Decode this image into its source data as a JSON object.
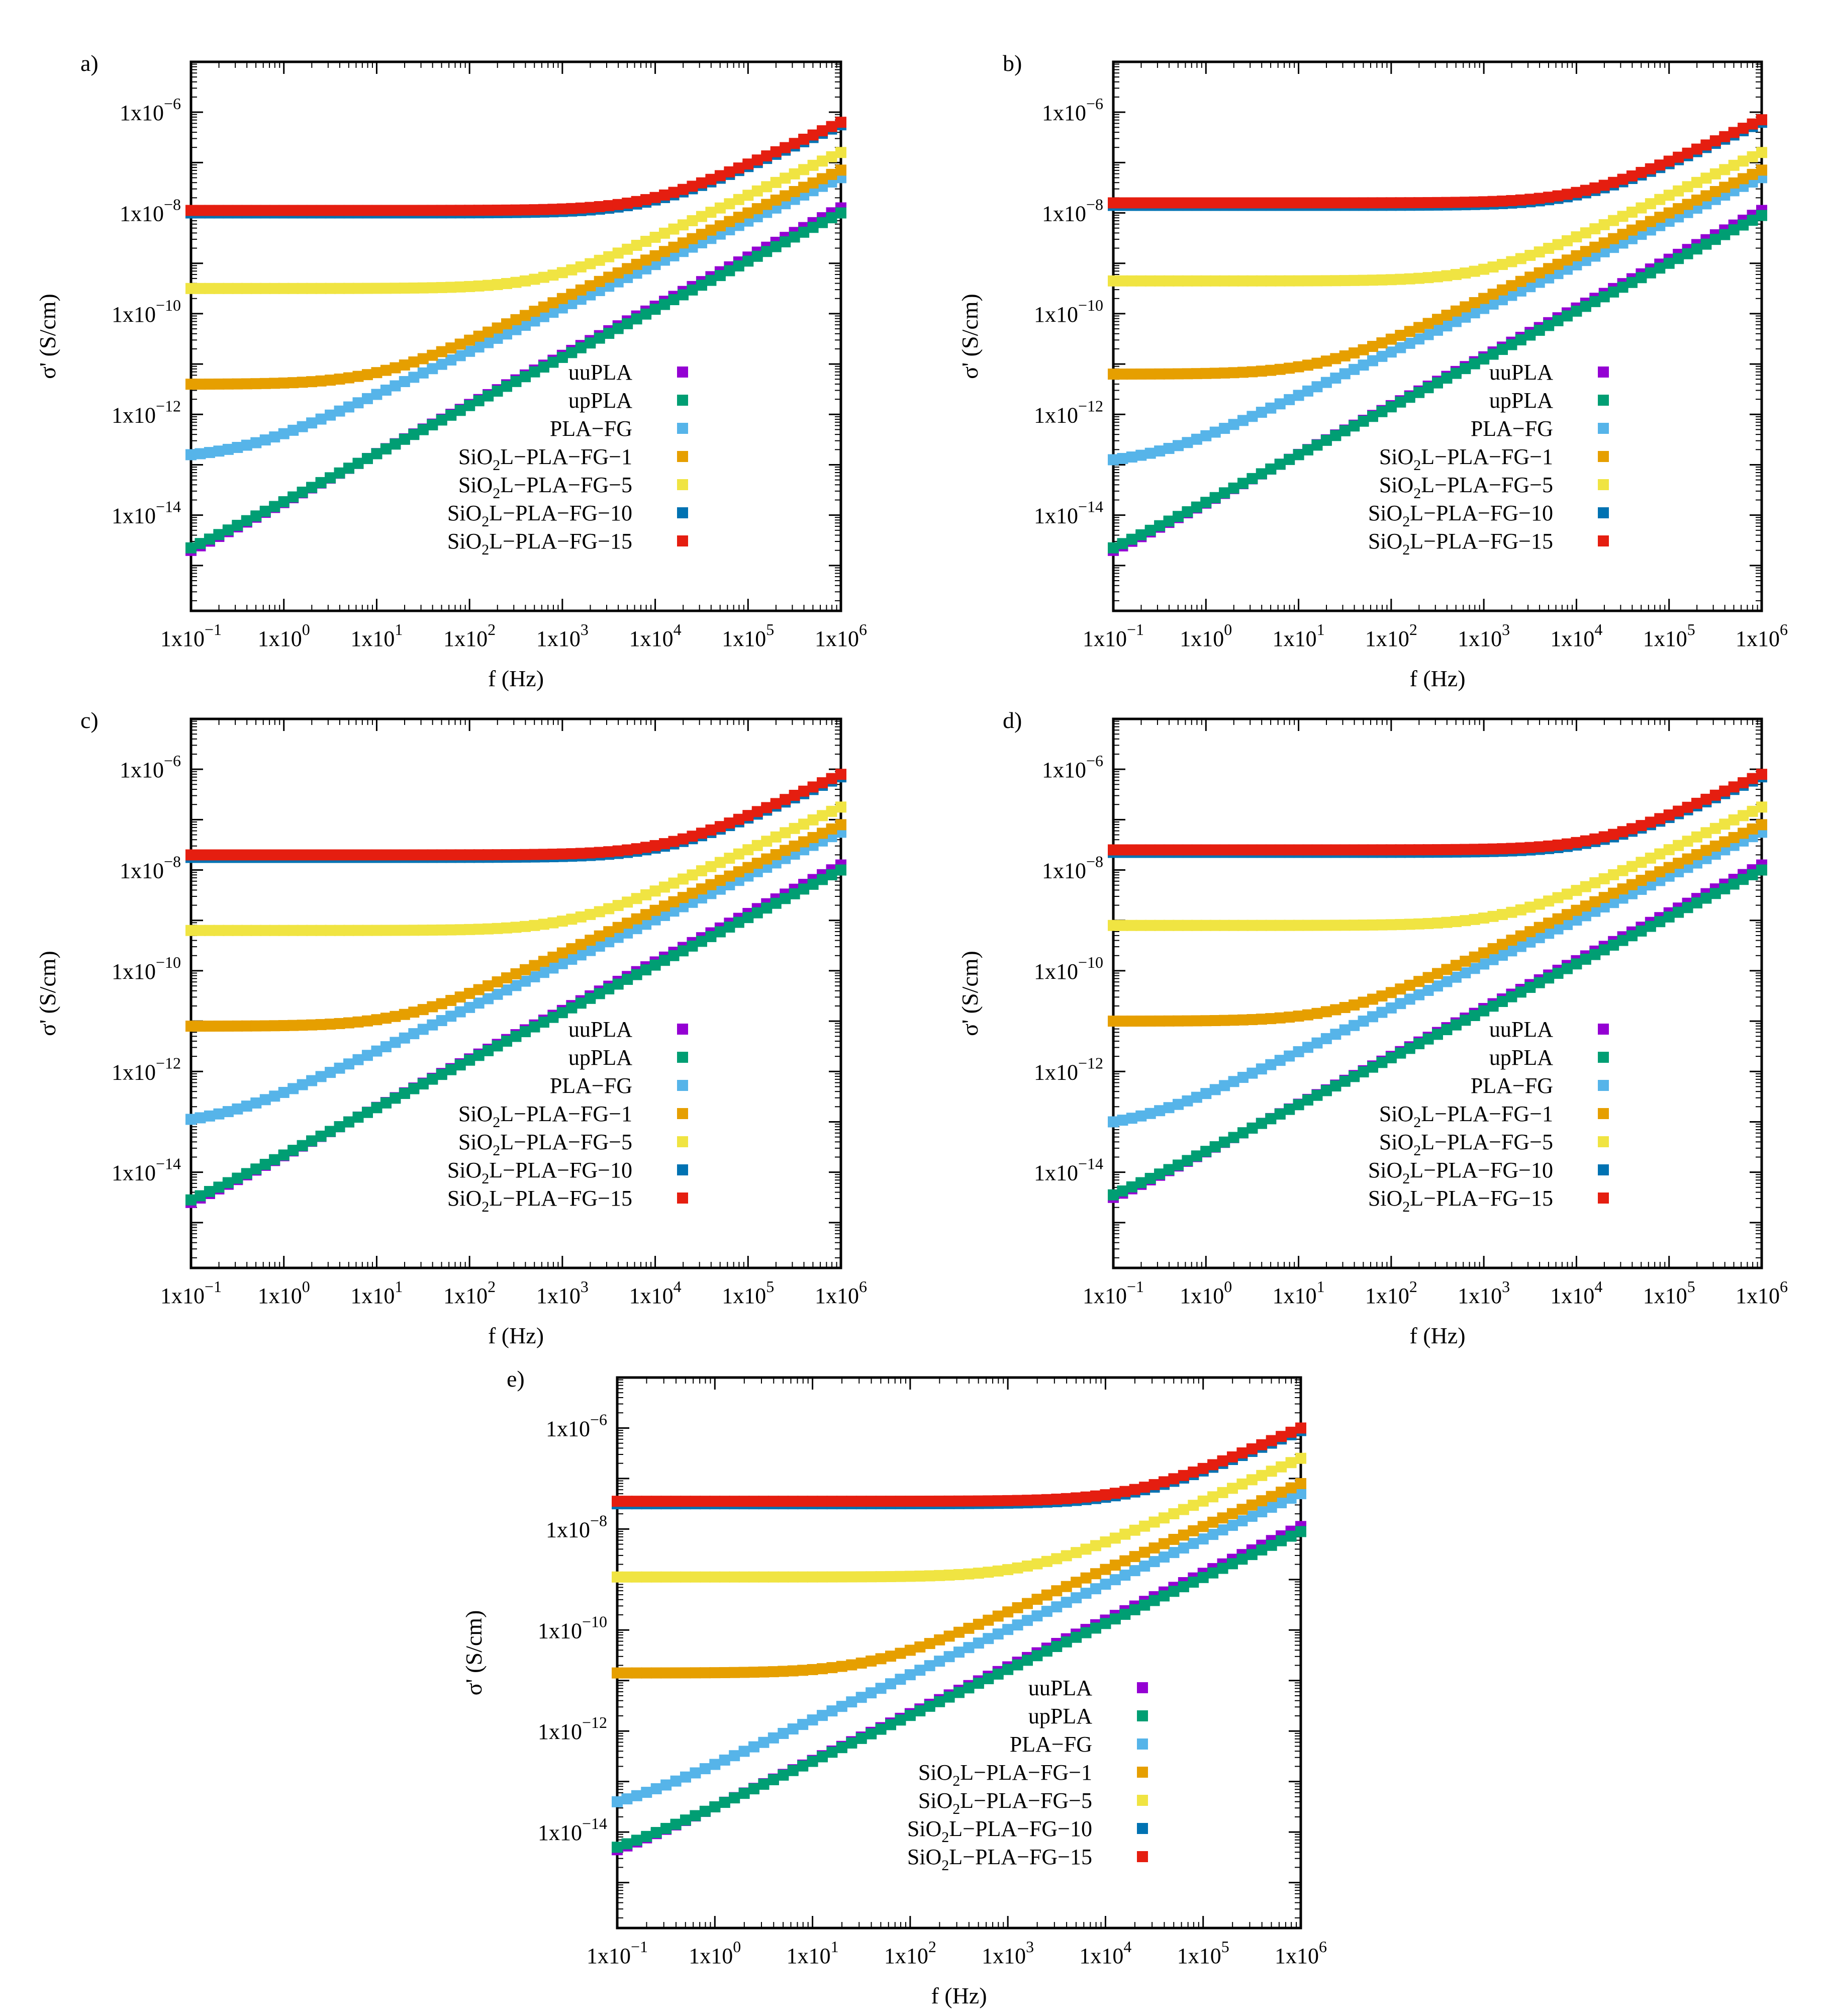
{
  "figure": {
    "x_axis_label": "f (Hz)",
    "y_axis_label": "σ' (S/cm)"
  },
  "series_defs": [
    {
      "name": "uuPLA",
      "color": "#9400d3"
    },
    {
      "name": "upPLA",
      "color": "#009e73"
    },
    {
      "name": "PLA-FG",
      "color": "#56b4e9"
    },
    {
      "name": "SiO2L-PLA-FG-1",
      "color": "#e69f00"
    },
    {
      "name": "SiO2L-PLA-FG-5",
      "color": "#f0e442"
    },
    {
      "name": "SiO2L-PLA-FG-10",
      "color": "#0072b2"
    },
    {
      "name": "SiO2L-PLA-FG-15",
      "color": "#e51e10"
    }
  ],
  "legend_entries": [
    {
      "prefix": "uuPLA",
      "sub": "",
      "suffix": ""
    },
    {
      "prefix": "upPLA",
      "sub": "",
      "suffix": ""
    },
    {
      "prefix": "PLA−FG",
      "sub": "",
      "suffix": ""
    },
    {
      "prefix": "SiO",
      "sub": "2",
      "suffix": "L−PLA−FG−1"
    },
    {
      "prefix": "SiO",
      "sub": "2",
      "suffix": "L−PLA−FG−5"
    },
    {
      "prefix": "SiO",
      "sub": "2",
      "suffix": "L−PLA−FG−10"
    },
    {
      "prefix": "SiO",
      "sub": "2",
      "suffix": "L−PLA−FG−15"
    }
  ],
  "x_tick_labels": [
    {
      "base": "1x10",
      "exp": "−1"
    },
    {
      "base": "1x10",
      "exp": "0"
    },
    {
      "base": "1x10",
      "exp": "1"
    },
    {
      "base": "1x10",
      "exp": "2"
    },
    {
      "base": "1x10",
      "exp": "3"
    },
    {
      "base": "1x10",
      "exp": "4"
    },
    {
      "base": "1x10",
      "exp": "5"
    },
    {
      "base": "1x10",
      "exp": "6"
    }
  ],
  "y_tick_labels": [
    {
      "base": "1x10",
      "exp": "−6"
    },
    {
      "base": "1x10",
      "exp": "−8"
    },
    {
      "base": "1x10",
      "exp": "−10"
    },
    {
      "base": "1x10",
      "exp": "−12"
    },
    {
      "base": "1x10",
      "exp": "−14"
    }
  ],
  "chart_data": [
    {
      "panel": "a)",
      "type": "scatter",
      "xscale": "log",
      "yscale": "log",
      "xlim": [
        0.1,
        1000000
      ],
      "ylim_log10": [
        -15.9,
        -5.0
      ],
      "xlabel": "f (Hz)",
      "ylabel": "σ' (S/cm)",
      "legend": "bottom-right",
      "series": [
        {
          "name": "uuPLA",
          "log10_sigma_at_0_1Hz": -14.7,
          "log10_sigma_at_1MHz": -7.9
        },
        {
          "name": "upPLA",
          "log10_sigma_at_0_1Hz": -14.65,
          "log10_sigma_at_1MHz": -8.0
        },
        {
          "name": "PLA-FG",
          "log10_sigma_at_0_1Hz": -12.8,
          "log10_sigma_at_1MHz": -7.3
        },
        {
          "name": "SiO2L-PLA-FG-1",
          "log10_sigma_at_0_1Hz": -11.4,
          "log10_sigma_at_1MHz": -7.15
        },
        {
          "name": "SiO2L-PLA-FG-5",
          "log10_sigma_at_0_1Hz": -9.5,
          "log10_sigma_at_1MHz": -6.8
        },
        {
          "name": "SiO2L-PLA-FG-10",
          "log10_sigma_at_0_1Hz": -8.0,
          "log10_sigma_at_1MHz": -6.25
        },
        {
          "name": "SiO2L-PLA-FG-15",
          "log10_sigma_at_0_1Hz": -7.95,
          "log10_sigma_at_1MHz": -6.2
        }
      ]
    },
    {
      "panel": "b)",
      "type": "scatter",
      "xscale": "log",
      "yscale": "log",
      "xlim": [
        0.1,
        1000000
      ],
      "ylim_log10": [
        -15.9,
        -5.0
      ],
      "xlabel": "f (Hz)",
      "ylabel": "σ' (S/cm)",
      "legend": "bottom-right",
      "series": [
        {
          "name": "uuPLA",
          "log10_sigma_at_0_1Hz": -14.7,
          "log10_sigma_at_1MHz": -7.95
        },
        {
          "name": "upPLA",
          "log10_sigma_at_0_1Hz": -14.65,
          "log10_sigma_at_1MHz": -8.05
        },
        {
          "name": "PLA-FG",
          "log10_sigma_at_0_1Hz": -12.9,
          "log10_sigma_at_1MHz": -7.3
        },
        {
          "name": "SiO2L-PLA-FG-1",
          "log10_sigma_at_0_1Hz": -11.2,
          "log10_sigma_at_1MHz": -7.15
        },
        {
          "name": "SiO2L-PLA-FG-5",
          "log10_sigma_at_0_1Hz": -9.35,
          "log10_sigma_at_1MHz": -6.8
        },
        {
          "name": "SiO2L-PLA-FG-10",
          "log10_sigma_at_0_1Hz": -7.85,
          "log10_sigma_at_1MHz": -6.2
        },
        {
          "name": "SiO2L-PLA-FG-15",
          "log10_sigma_at_0_1Hz": -7.8,
          "log10_sigma_at_1MHz": -6.15
        }
      ]
    },
    {
      "panel": "c)",
      "type": "scatter",
      "xscale": "log",
      "yscale": "log",
      "xlim": [
        0.1,
        1000000
      ],
      "ylim_log10": [
        -15.9,
        -5.0
      ],
      "xlabel": "f (Hz)",
      "ylabel": "σ' (S/cm)",
      "legend": "bottom-right",
      "series": [
        {
          "name": "uuPLA",
          "log10_sigma_at_0_1Hz": -14.6,
          "log10_sigma_at_1MHz": -7.9
        },
        {
          "name": "upPLA",
          "log10_sigma_at_0_1Hz": -14.55,
          "log10_sigma_at_1MHz": -8.0
        },
        {
          "name": "PLA-FG",
          "log10_sigma_at_0_1Hz": -12.95,
          "log10_sigma_at_1MHz": -7.25
        },
        {
          "name": "SiO2L-PLA-FG-1",
          "log10_sigma_at_0_1Hz": -11.1,
          "log10_sigma_at_1MHz": -7.1
        },
        {
          "name": "SiO2L-PLA-FG-5",
          "log10_sigma_at_0_1Hz": -9.2,
          "log10_sigma_at_1MHz": -6.75
        },
        {
          "name": "SiO2L-PLA-FG-10",
          "log10_sigma_at_0_1Hz": -7.75,
          "log10_sigma_at_1MHz": -6.15
        },
        {
          "name": "SiO2L-PLA-FG-15",
          "log10_sigma_at_0_1Hz": -7.7,
          "log10_sigma_at_1MHz": -6.1
        }
      ]
    },
    {
      "panel": "d)",
      "type": "scatter",
      "xscale": "log",
      "yscale": "log",
      "xlim": [
        0.1,
        1000000
      ],
      "ylim_log10": [
        -15.9,
        -5.0
      ],
      "xlabel": "f (Hz)",
      "ylabel": "σ' (S/cm)",
      "legend": "bottom-right",
      "series": [
        {
          "name": "uuPLA",
          "log10_sigma_at_0_1Hz": -14.5,
          "log10_sigma_at_1MHz": -7.9
        },
        {
          "name": "upPLA",
          "log10_sigma_at_0_1Hz": -14.45,
          "log10_sigma_at_1MHz": -8.0
        },
        {
          "name": "PLA-FG",
          "log10_sigma_at_0_1Hz": -13.0,
          "log10_sigma_at_1MHz": -7.25
        },
        {
          "name": "SiO2L-PLA-FG-1",
          "log10_sigma_at_0_1Hz": -11.0,
          "log10_sigma_at_1MHz": -7.1
        },
        {
          "name": "SiO2L-PLA-FG-5",
          "log10_sigma_at_0_1Hz": -9.1,
          "log10_sigma_at_1MHz": -6.75
        },
        {
          "name": "SiO2L-PLA-FG-10",
          "log10_sigma_at_0_1Hz": -7.65,
          "log10_sigma_at_1MHz": -6.15
        },
        {
          "name": "SiO2L-PLA-FG-15",
          "log10_sigma_at_0_1Hz": -7.6,
          "log10_sigma_at_1MHz": -6.1
        }
      ]
    },
    {
      "panel": "e)",
      "type": "scatter",
      "xscale": "log",
      "yscale": "log",
      "xlim": [
        0.1,
        1000000
      ],
      "ylim_log10": [
        -15.9,
        -5.0
      ],
      "xlabel": "f (Hz)",
      "ylabel": "σ' (S/cm)",
      "legend": "bottom-right",
      "series": [
        {
          "name": "uuPLA",
          "log10_sigma_at_0_1Hz": -14.35,
          "log10_sigma_at_1MHz": -7.95
        },
        {
          "name": "upPLA",
          "log10_sigma_at_0_1Hz": -14.3,
          "log10_sigma_at_1MHz": -8.05
        },
        {
          "name": "PLA-FG",
          "log10_sigma_at_0_1Hz": -13.4,
          "log10_sigma_at_1MHz": -7.3
        },
        {
          "name": "SiO2L-PLA-FG-1",
          "log10_sigma_at_0_1Hz": -10.85,
          "log10_sigma_at_1MHz": -7.1
        },
        {
          "name": "SiO2L-PLA-FG-5",
          "log10_sigma_at_0_1Hz": -8.95,
          "log10_sigma_at_1MHz": -6.6
        },
        {
          "name": "SiO2L-PLA-FG-10",
          "log10_sigma_at_0_1Hz": -7.5,
          "log10_sigma_at_1MHz": -6.05
        },
        {
          "name": "SiO2L-PLA-FG-15",
          "log10_sigma_at_0_1Hz": -7.45,
          "log10_sigma_at_1MHz": -6.0
        }
      ]
    }
  ]
}
